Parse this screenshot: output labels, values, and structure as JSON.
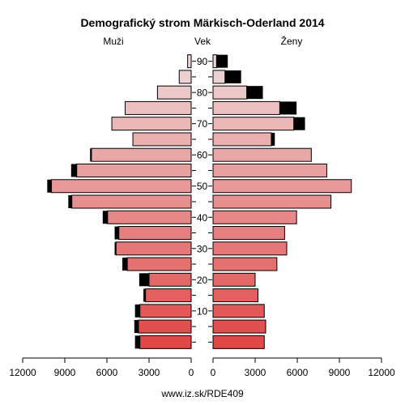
{
  "chart_data": {
    "type": "bar",
    "title": "Demografický strom Märkisch-Oderland 2014",
    "left_label": "Muži",
    "center_label": "Vek",
    "right_label": "Ženy",
    "footer": "www.iz.sk/RDE409",
    "age_ticks": [
      "10",
      "20",
      "30",
      "40",
      "50",
      "60",
      "70",
      "80",
      "90"
    ],
    "xlim": [
      0,
      12000
    ],
    "x_ticks_left": [
      "12000",
      "9000",
      "6000",
      "3000",
      "0"
    ],
    "x_ticks_right": [
      "0",
      "3000",
      "6000",
      "9000",
      "12000"
    ],
    "age_groups": [
      "0-4",
      "5-9",
      "10-14",
      "15-19",
      "20-24",
      "25-29",
      "30-34",
      "35-39",
      "40-44",
      "45-49",
      "50-54",
      "55-59",
      "60-64",
      "65-69",
      "70-74",
      "75-79",
      "80-84",
      "85-89",
      "90+"
    ],
    "series": [
      {
        "name": "Muži",
        "values": [
          3650,
          3750,
          3650,
          3250,
          3000,
          4550,
          5350,
          5150,
          5950,
          8500,
          9950,
          8150,
          7100,
          4150,
          5650,
          4700,
          2400,
          850,
          250
        ],
        "surplus": [
          350,
          300,
          350,
          150,
          700,
          350,
          100,
          300,
          350,
          250,
          300,
          400,
          100,
          0,
          0,
          0,
          0,
          0,
          0
        ]
      },
      {
        "name": "Ženy",
        "values": [
          3650,
          3750,
          3650,
          3200,
          3000,
          4550,
          5250,
          5100,
          5950,
          8400,
          9850,
          8100,
          7000,
          4150,
          5750,
          4750,
          2400,
          850,
          250
        ],
        "surplus": [
          0,
          0,
          0,
          0,
          0,
          0,
          0,
          0,
          0,
          0,
          0,
          0,
          0,
          250,
          800,
          1200,
          1150,
          1150,
          800
        ]
      }
    ],
    "colors": {
      "bar_start": "#e04848",
      "bar_end": "#eed8d8",
      "surplus": "#000000",
      "outline": "#000000"
    }
  }
}
